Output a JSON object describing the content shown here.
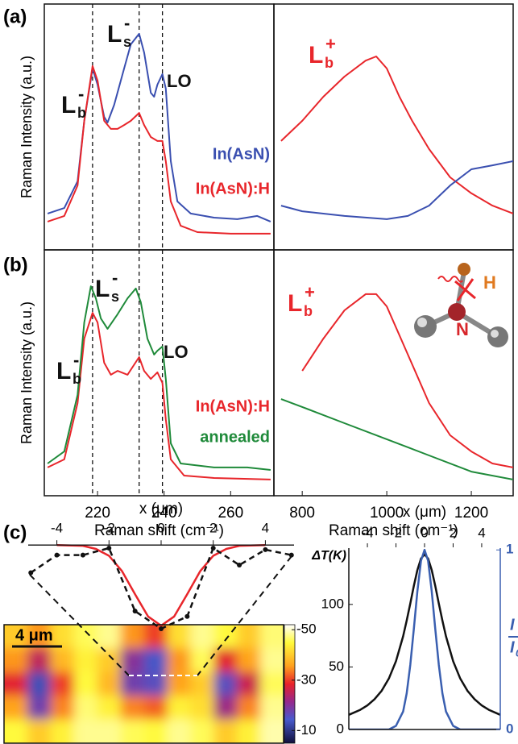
{
  "panel_labels": [
    "(a)",
    "(b)",
    "(c)"
  ],
  "chart_data": [
    {
      "type": "line",
      "ylabel": "Raman Intensity (a.u.)",
      "xlim": [
        204,
        273
      ],
      "ylim": [
        0,
        100
      ],
      "vlines": [
        218.5,
        232.5,
        239.5
      ],
      "annotations": [
        {
          "text": "L",
          "sub": "b",
          "sup": "-"
        },
        {
          "text": "L",
          "sub": "s",
          "sup": "-"
        },
        {
          "text": "LO"
        }
      ],
      "series": [
        {
          "name": "In(AsN)",
          "color": "#3a4fb0",
          "x": [
            205,
            210,
            214,
            216,
            218.5,
            220,
            222,
            223,
            225,
            228,
            230,
            232.5,
            234,
            236,
            237,
            238,
            239.5,
            240.5,
            242,
            244,
            248,
            255,
            262,
            268,
            272
          ],
          "values": [
            14.8,
            17.0,
            27.9,
            52.5,
            73.8,
            67.2,
            54.1,
            51.8,
            59.0,
            73.8,
            83.6,
            87.9,
            80.3,
            63.9,
            62.3,
            67.2,
            71.5,
            65.6,
            36.1,
            19.7,
            14.8,
            13.1,
            12.5,
            13.8,
            11.5
          ]
        },
        {
          "name": "In(AsN):H",
          "color": "#e8262b",
          "x": [
            205,
            210,
            214,
            216,
            218.5,
            220,
            222,
            224,
            226,
            228,
            230,
            232.5,
            234,
            236,
            238,
            239.5,
            240.5,
            242,
            245,
            250,
            260,
            272
          ],
          "values": [
            11.5,
            13.8,
            26.2,
            52.5,
            74.8,
            68.9,
            52.5,
            49.2,
            49.2,
            50.8,
            52.5,
            55.7,
            50.8,
            45.9,
            44.3,
            44.3,
            36.1,
            19.7,
            9.8,
            7.2,
            6.6,
            6.6
          ]
        }
      ]
    },
    {
      "type": "line",
      "xlim": [
        733,
        1299
      ],
      "ylim": [
        0,
        100
      ],
      "annotations": [
        {
          "text": "L",
          "sub": "b",
          "sup": "+",
          "color": "#e8262b"
        }
      ],
      "series": [
        {
          "color": "#e8262b",
          "x": [
            750,
            800,
            850,
            900,
            950,
            975,
            1000,
            1030,
            1060,
            1100,
            1150,
            1200,
            1250,
            1299
          ],
          "values": [
            44.3,
            52.5,
            62.3,
            70.5,
            77.0,
            78.7,
            73.8,
            62.3,
            52.5,
            41.0,
            29.5,
            23.0,
            18.0,
            14.8
          ]
        },
        {
          "color": "#3a4fb0",
          "x": [
            750,
            800,
            900,
            1000,
            1050,
            1100,
            1150,
            1200,
            1250,
            1299
          ],
          "values": [
            18.0,
            15.7,
            13.8,
            12.5,
            13.8,
            18.0,
            26.2,
            32.8,
            34.4,
            36.1
          ]
        }
      ]
    },
    {
      "type": "line",
      "ylabel": "Raman Intensity (a.u.)",
      "xlabel": "Raman shift (cm⁻¹)",
      "xlim": [
        204,
        273
      ],
      "ylim": [
        0,
        100
      ],
      "xticks": [
        220,
        240,
        260
      ],
      "vlines": [
        218.5,
        232.5,
        239.5
      ],
      "annotations": [
        {
          "text": "L",
          "sub": "b",
          "sup": "-"
        },
        {
          "text": "L",
          "sub": "s",
          "sup": "-"
        },
        {
          "text": "LO"
        }
      ],
      "series": [
        {
          "name": "In(AsN):H",
          "color": "#e8262b",
          "x": [
            205,
            210,
            214,
            216,
            218.5,
            220,
            222,
            224,
            226,
            229,
            232.5,
            234,
            236,
            238,
            239.5,
            240.5,
            242,
            246,
            255,
            272
          ],
          "values": [
            11.5,
            14.8,
            37.7,
            63.9,
            74.4,
            70.5,
            54.1,
            49.2,
            50.8,
            49.2,
            56.4,
            50.8,
            47.5,
            50.2,
            45.9,
            31.1,
            14.8,
            8.2,
            7.2,
            6.6
          ]
        },
        {
          "name": "annealed",
          "color": "#1f8a3a",
          "x": [
            205,
            210,
            214,
            216,
            218,
            219.5,
            221,
            223,
            226,
            229,
            231.5,
            233,
            235,
            237,
            238,
            239.5,
            240.5,
            242,
            245,
            255,
            265,
            272
          ],
          "values": [
            13.1,
            18.0,
            41.0,
            70.5,
            85.2,
            80.3,
            72.1,
            67.9,
            73.8,
            80.3,
            84.3,
            78.7,
            63.9,
            57.4,
            59.0,
            60.7,
            47.5,
            21.3,
            13.1,
            11.5,
            11.5,
            10.5
          ]
        }
      ]
    },
    {
      "type": "line",
      "xlabel": "Raman shift (cm⁻¹)",
      "xlim": [
        733,
        1299
      ],
      "ylim": [
        0,
        100
      ],
      "xticks": [
        800,
        1000,
        1200
      ],
      "annotations": [
        {
          "text": "L",
          "sub": "b",
          "sup": "+",
          "color": "#e8262b"
        },
        {
          "text": "H",
          "color": "#e07a20"
        },
        {
          "text": "N",
          "color": "#d8262b"
        }
      ],
      "series": [
        {
          "color": "#e8262b",
          "x": [
            800,
            850,
            900,
            950,
            975,
            1000,
            1050,
            1100,
            1150,
            1200,
            1250,
            1299
          ],
          "values": [
            50.8,
            63.9,
            75.4,
            82.0,
            82.0,
            77.0,
            57.4,
            37.7,
            24.6,
            18.0,
            13.1,
            11.5
          ]
        },
        {
          "color": "#1f8a3a",
          "x": [
            750,
            800,
            900,
            1000,
            1100,
            1200,
            1299
          ],
          "values": [
            39.3,
            36.1,
            29.5,
            23.0,
            16.4,
            9.8,
            6.6
          ]
        }
      ]
    },
    {
      "type": "line",
      "xlabel": "x (μm)",
      "xlim": [
        -5.1,
        5.1
      ],
      "ylim": [
        -1.3,
        0.17
      ],
      "xticks": [
        -4,
        -2,
        0,
        2,
        4
      ],
      "series": [
        {
          "color": "#e8262b",
          "x": [
            -4,
            -3,
            -2.5,
            -2,
            -1.5,
            -1,
            -0.5,
            0,
            0.5,
            1,
            1.5,
            2,
            2.5,
            3,
            4
          ],
          "values": [
            0,
            -0.01,
            -0.05,
            -0.14,
            -0.34,
            -0.64,
            -0.93,
            -1.05,
            -0.93,
            -0.64,
            -0.34,
            -0.14,
            -0.05,
            -0.01,
            0
          ]
        },
        {
          "color": "#111111",
          "linestyle": "dashed",
          "markers": true,
          "x": [
            -5,
            -4,
            -3,
            -2,
            -1,
            0,
            1,
            2,
            3,
            4,
            5
          ],
          "values": [
            -0.36,
            -0.13,
            -0.13,
            -0.04,
            -0.86,
            -1.09,
            -0.93,
            -0.04,
            -0.26,
            -0.06,
            -0.13
          ]
        }
      ]
    },
    {
      "type": "heatmap",
      "scale_bar": "4 μm",
      "clim": [
        -52,
        -5
      ],
      "colorbar_ticks": [
        -50,
        -30,
        -10
      ],
      "values": [
        [
          -40,
          -35,
          -42,
          -46,
          -48,
          -35,
          -30,
          -42,
          -48,
          -45,
          -40,
          -47
        ],
        [
          -35,
          -25,
          -38,
          -44,
          -40,
          -20,
          -14,
          -35,
          -46,
          -28,
          -36,
          -48
        ],
        [
          -28,
          -13,
          -30,
          -45,
          -38,
          -18,
          -16,
          -36,
          -40,
          -16,
          -26,
          -46
        ],
        [
          -36,
          -18,
          -34,
          -47,
          -44,
          -34,
          -32,
          -44,
          -42,
          -22,
          -34,
          -48
        ],
        [
          -45,
          -40,
          -44,
          -48,
          -48,
          -46,
          -45,
          -48,
          -46,
          -40,
          -44,
          -49
        ]
      ]
    },
    {
      "type": "line",
      "xlabel": "x (μm)",
      "ylabel": "ΔT(K)",
      "y2label": {
        "top": "I",
        "bottom": "I",
        "bottom_sub": "0"
      },
      "xlim": [
        -5.3,
        5.3
      ],
      "ylim": [
        0,
        145
      ],
      "y2lim": [
        0,
        1.01
      ],
      "xticks": [
        -4,
        -2,
        0,
        2,
        4
      ],
      "yticks": [
        0,
        50,
        100
      ],
      "y2ticks": [
        0,
        1
      ],
      "series": [
        {
          "color": "#111111",
          "x": [
            -5.3,
            -4.5,
            -4,
            -3.5,
            -3,
            -2.5,
            -2,
            -1.5,
            -1.25,
            -1,
            -0.75,
            -0.5,
            -0.25,
            0,
            0.25,
            0.5,
            0.75,
            1,
            1.25,
            1.5,
            2,
            2.5,
            3,
            3.5,
            4,
            4.5,
            5.3
          ],
          "values": [
            11.7,
            15.7,
            19.3,
            24.2,
            31,
            40.7,
            54.6,
            74.5,
            87,
            100.7,
            114.8,
            127.5,
            136.7,
            140,
            136.7,
            127.5,
            114.8,
            100.7,
            87,
            74.5,
            54.6,
            40.7,
            31,
            24.2,
            19.3,
            15.7,
            11.7
          ]
        },
        {
          "color": "#3a5fb0",
          "axis": "y2",
          "x": [
            -5.3,
            -4.5,
            -4,
            -3.5,
            -3,
            -2.5,
            -2,
            -1.5,
            -1.25,
            -1,
            -0.75,
            -0.5,
            -0.25,
            0,
            0.25,
            0.5,
            0.75,
            1,
            1.25,
            1.5,
            2,
            2.5,
            3,
            3.5,
            4,
            4.5,
            5.3
          ],
          "values": [
            0,
            0,
            0,
            0,
            0,
            0,
            0.02,
            0.1,
            0.2,
            0.36,
            0.56,
            0.77,
            0.94,
            1,
            0.94,
            0.77,
            0.56,
            0.36,
            0.2,
            0.1,
            0.02,
            0,
            0,
            0,
            0,
            0,
            0
          ]
        }
      ]
    }
  ]
}
